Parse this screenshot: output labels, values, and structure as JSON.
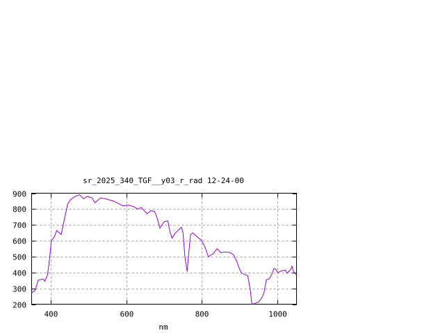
{
  "chart_data": {
    "type": "line",
    "title": "sr_2025_340_TGF__y03_r_rad 12-24-00",
    "xlabel": "nm",
    "ylabel": "",
    "xlim": [
      350,
      1050
    ],
    "ylim": [
      200,
      900
    ],
    "xticks": [
      400,
      600,
      800,
      1000
    ],
    "yticks": [
      200,
      300,
      400,
      500,
      600,
      700,
      800,
      900
    ],
    "grid": true,
    "line_color": "#9400d3",
    "series": [
      {
        "x": [
          350,
          360,
          367,
          380,
          385,
          392,
          398,
          402,
          410,
          416,
          428,
          435,
          445,
          453,
          465,
          477,
          487,
          497,
          510,
          517,
          532,
          545,
          566,
          580,
          591,
          605,
          620,
          630,
          640,
          655,
          665,
          675,
          682,
          689,
          700,
          710,
          715,
          721,
          730,
          746,
          750,
          755,
          761,
          765,
          770,
          776,
          785,
          795,
          800,
          808,
          817,
          830,
          840,
          850,
          860,
          875,
          884,
          892,
          900,
          905,
          915,
          921,
          927,
          932,
          940,
          950,
          958,
          964,
          970,
          978,
          985,
          990,
          995,
          1000,
          1010,
          1020,
          1025,
          1035,
          1038,
          1042,
          1050
        ],
        "y": [
          271,
          290,
          350,
          360,
          345,
          385,
          500,
          600,
          625,
          665,
          640,
          720,
          830,
          860,
          880,
          890,
          865,
          880,
          870,
          840,
          870,
          865,
          850,
          835,
          820,
          825,
          815,
          800,
          810,
          770,
          790,
          785,
          740,
          680,
          720,
          725,
          660,
          617,
          650,
          685,
          650,
          500,
          405,
          520,
          640,
          650,
          630,
          610,
          598,
          560,
          500,
          520,
          550,
          525,
          530,
          525,
          510,
          470,
          418,
          395,
          385,
          380,
          300,
          200,
          205,
          215,
          240,
          273,
          353,
          360,
          390,
          425,
          420,
          400,
          410,
          415,
          395,
          420,
          440,
          405,
          385
        ]
      }
    ]
  }
}
